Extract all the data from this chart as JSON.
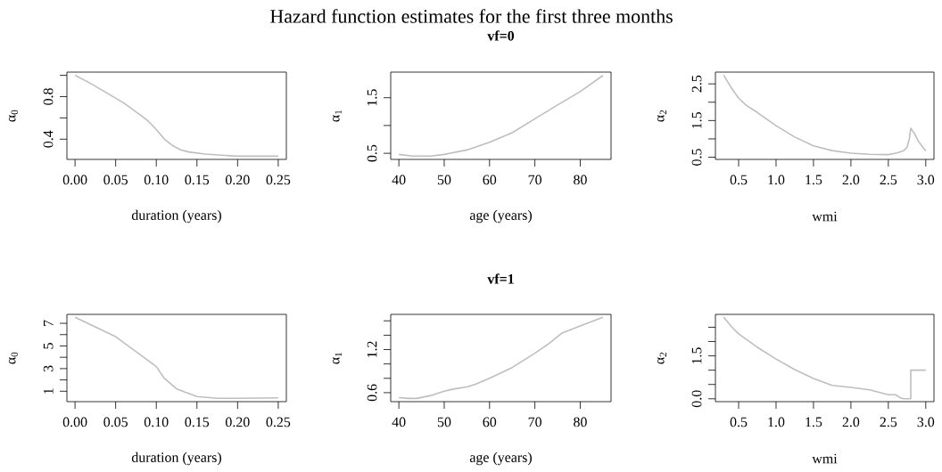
{
  "chart_data": [
    {
      "type": "line",
      "xlabel": "duration (years)",
      "ylabel": "α$_{0}$",
      "color": "#bebebe",
      "x": [
        0,
        0.02,
        0.04,
        0.06,
        0.08,
        0.09,
        0.1,
        0.11,
        0.12,
        0.13,
        0.14,
        0.16,
        0.18,
        0.2,
        0.22,
        0.25
      ],
      "values": [
        1.0,
        0.92,
        0.83,
        0.74,
        0.63,
        0.57,
        0.49,
        0.4,
        0.34,
        0.3,
        0.28,
        0.26,
        0.25,
        0.24,
        0.24,
        0.24
      ],
      "xlim": [
        -0.01,
        0.26
      ],
      "ylim": [
        0.21,
        1.03
      ],
      "xticks": [
        {
          "value": 0,
          "label": "0.00"
        },
        0.05,
        {
          "value": 0.1,
          "label": "0.10"
        },
        0.15,
        {
          "value": 0.2,
          "label": "0.20"
        },
        0.25
      ],
      "yticks": [
        0.4,
        {
          "value": 0.6,
          "label": null
        },
        0.8,
        {
          "value": 1.0,
          "label": null
        }
      ]
    },
    {
      "type": "line",
      "title": "Hazard function estimates for the first three months",
      "subtitle": "vf=0",
      "xlabel": "age (years)",
      "ylabel": "α$_{1}$",
      "color": "#bebebe",
      "x": [
        40,
        43,
        47,
        50,
        55,
        60,
        65,
        70,
        75,
        80,
        85
      ],
      "values": [
        0.48,
        0.45,
        0.45,
        0.48,
        0.56,
        0.7,
        0.87,
        1.12,
        1.37,
        1.61,
        1.9
      ],
      "xlim": [
        38.2,
        86.8
      ],
      "ylim": [
        0.39,
        1.96
      ],
      "xticks": [
        40,
        50,
        60,
        70,
        80
      ],
      "yticks": [
        0.5,
        {
          "value": 1.0,
          "label": null
        },
        1.5
      ]
    },
    {
      "type": "line",
      "xlabel": "wmi",
      "ylabel": "α$_{2}$",
      "color": "#bebebe",
      "x": [
        0.3,
        0.4,
        0.5,
        0.6,
        0.75,
        1.0,
        1.25,
        1.5,
        1.75,
        2.0,
        2.25,
        2.5,
        2.6,
        2.7,
        2.75,
        2.78,
        2.8,
        2.85,
        2.9,
        3.0
      ],
      "values": [
        2.74,
        2.4,
        2.11,
        1.92,
        1.72,
        1.36,
        1.05,
        0.81,
        0.68,
        0.61,
        0.58,
        0.57,
        0.61,
        0.67,
        0.77,
        1.0,
        1.29,
        1.14,
        0.94,
        0.67
      ],
      "xlim": [
        0.19,
        3.11
      ],
      "ylim": [
        0.44,
        2.82
      ],
      "xticks": [
        0.5,
        {
          "value": 1,
          "label": "1.0"
        },
        1.5,
        {
          "value": 2,
          "label": "2.0"
        },
        2.5,
        {
          "value": 3,
          "label": "3.0"
        }
      ],
      "yticks": [
        0.5,
        {
          "value": 1.0,
          "label": null
        },
        1.5,
        {
          "value": 2.0,
          "label": null
        },
        2.5
      ]
    },
    {
      "type": "line",
      "xlabel": "duration (years)",
      "ylabel": "α$_{0}$",
      "color": "#bebebe",
      "x": [
        0,
        0.05,
        0.08,
        0.1,
        0.11,
        0.125,
        0.15,
        0.175,
        0.2,
        0.25
      ],
      "values": [
        7.53,
        5.82,
        4.24,
        3.18,
        2.13,
        1.21,
        0.53,
        0.37,
        0.37,
        0.42
      ],
      "xlim": [
        -0.01,
        0.26
      ],
      "ylim": [
        0.08,
        7.79
      ],
      "xticks": [
        {
          "value": 0,
          "label": "0.00"
        },
        0.05,
        {
          "value": 0.1,
          "label": "0.10"
        },
        0.15,
        {
          "value": 0.2,
          "label": "0.20"
        },
        0.25
      ],
      "yticks": [
        1,
        {
          "value": 2,
          "label": null
        },
        3,
        {
          "value": 4,
          "label": null
        },
        5,
        {
          "value": 6,
          "label": null
        },
        7
      ]
    },
    {
      "type": "line",
      "title": "vf=1",
      "xlabel": "age (years)",
      "ylabel": "α$_{1}$",
      "color": "#bebebe",
      "x": [
        40,
        42,
        44,
        47,
        50,
        52,
        55,
        57,
        60,
        65,
        70,
        73,
        76,
        80,
        85
      ],
      "values": [
        0.53,
        0.52,
        0.52,
        0.56,
        0.62,
        0.65,
        0.68,
        0.72,
        0.8,
        0.95,
        1.15,
        1.28,
        1.43,
        1.53,
        1.65
      ],
      "xlim": [
        38.2,
        86.8
      ],
      "ylim": [
        0.475,
        1.69
      ],
      "xticks": [
        40,
        50,
        60,
        70,
        80
      ],
      "yticks": [
        0.6,
        {
          "value": 0.8,
          "label": null
        },
        {
          "value": 1.0,
          "label": null
        },
        1.2,
        {
          "value": 1.4,
          "label": null
        },
        {
          "value": 1.6,
          "label": null
        }
      ]
    },
    {
      "type": "line",
      "xlabel": "wmi",
      "ylabel": "α$_{2}$",
      "color": "#bebebe",
      "x": [
        0.3,
        0.4,
        0.5,
        0.75,
        1.0,
        1.25,
        1.5,
        1.75,
        2.0,
        2.25,
        2.5,
        2.6,
        2.65,
        2.7,
        2.8,
        2.8,
        3.0
      ],
      "values": [
        2.86,
        2.53,
        2.27,
        1.8,
        1.39,
        1.02,
        0.71,
        0.47,
        0.4,
        0.31,
        0.14,
        0.14,
        0.05,
        0.0,
        0.0,
        1.0,
        1.0
      ],
      "xlim": [
        0.19,
        3.11
      ],
      "ylim": [
        -0.1,
        2.95
      ],
      "xticks": [
        0.5,
        {
          "value": 1,
          "label": "1.0"
        },
        1.5,
        {
          "value": 2,
          "label": "2.0"
        },
        2.5,
        {
          "value": 3,
          "label": "3.0"
        }
      ],
      "yticks": [
        {
          "value": 0,
          "label": "0.0"
        },
        {
          "value": 0.5,
          "label": null
        },
        {
          "value": 1.0,
          "label": null
        },
        1.5,
        {
          "value": 2.0,
          "label": null
        },
        {
          "value": 2.5,
          "label": null
        }
      ]
    }
  ]
}
